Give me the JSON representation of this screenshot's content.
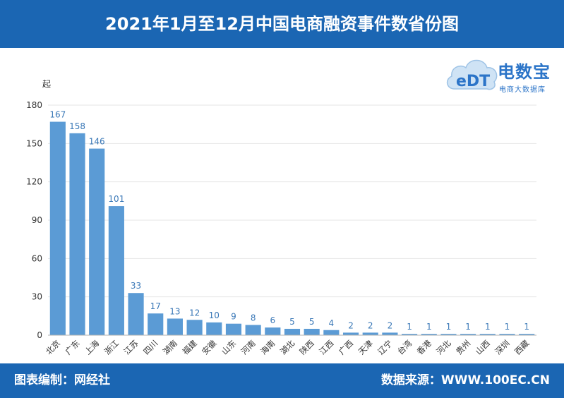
{
  "header": {
    "title": "2021年1月至12月中国电商融资事件数省份图"
  },
  "footer": {
    "editor": "图表编制：网经社",
    "source": "数据来源：WWW.100EC.CN"
  },
  "logo": {
    "name": "电数宝",
    "subtitle": "电商大数据库",
    "mark": "eDT"
  },
  "colors": {
    "header_bg": "#1b66b3",
    "bar": "#5b9bd5",
    "value_label": "#3a78b7"
  },
  "chart_data": {
    "type": "bar",
    "unit": "起",
    "categories": [
      "北京",
      "广东",
      "上海",
      "浙江",
      "江苏",
      "四川",
      "湖南",
      "福建",
      "安徽",
      "山东",
      "河南",
      "海南",
      "湖北",
      "陕西",
      "江西",
      "广西",
      "天津",
      "辽宁",
      "台湾",
      "香港",
      "河北",
      "贵州",
      "山西",
      "深圳",
      "西藏"
    ],
    "values": [
      167,
      158,
      146,
      101,
      33,
      17,
      13,
      12,
      10,
      9,
      8,
      6,
      5,
      5,
      4,
      2,
      2,
      2,
      1,
      1,
      1,
      1,
      1,
      1,
      1
    ],
    "ylim": [
      0,
      180
    ],
    "yticks": [
      0,
      30,
      60,
      90,
      120,
      150,
      180
    ],
    "grid": true,
    "legend": "none"
  }
}
